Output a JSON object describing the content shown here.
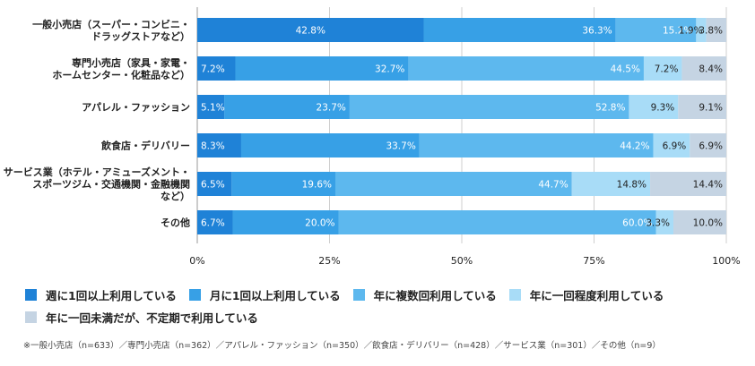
{
  "chart_data": {
    "type": "bar",
    "orientation": "horizontal",
    "stacked": true,
    "categories": [
      [
        "一般小売店（スーパー・コンビニ・",
        "ドラッグストアなど）"
      ],
      [
        "専門小売店（家具・家電・",
        "ホームセンター・化粧品など）"
      ],
      [
        "アパレル・ファッション"
      ],
      [
        "飲食店・デリバリー"
      ],
      [
        "サービス業（ホテル・アミューズメント・",
        "スポーツジム・交通機関・金融機関",
        "など）"
      ],
      [
        "その他"
      ]
    ],
    "series": [
      {
        "name": "週に1回以上利用している",
        "color": "#1f82d7",
        "values": [
          42.8,
          7.2,
          5.1,
          8.3,
          6.5,
          6.7
        ],
        "labels": [
          "42.8%",
          "7.2%",
          "5.1%",
          "8.3%",
          "6.5%",
          "6.7%"
        ]
      },
      {
        "name": "月に1回以上利用している",
        "color": "#37a0e6",
        "values": [
          36.3,
          32.7,
          23.7,
          33.7,
          19.6,
          20.0
        ],
        "labels": [
          "36.3%",
          "32.7%",
          "23.7%",
          "33.7%",
          "19.6%",
          "20.0%"
        ]
      },
      {
        "name": "年に複数回利用している",
        "color": "#5db8ee",
        "values": [
          15.2,
          44.5,
          52.8,
          44.2,
          44.7,
          60.0
        ],
        "labels": [
          "15.2%",
          "44.5%",
          "52.8%",
          "44.2%",
          "44.7%",
          "60.0%"
        ]
      },
      {
        "name": "年に一回程度利用している",
        "color": "#a8dcf7",
        "values": [
          1.9,
          7.2,
          9.3,
          6.9,
          14.8,
          3.3
        ],
        "labels": [
          "1.9%",
          "7.2%",
          "9.3%",
          "6.9%",
          "14.8%",
          "3.3%"
        ]
      },
      {
        "name": "年に一回未満だが、不定期で利用している",
        "color": "#c5d4e3",
        "values": [
          3.8,
          8.4,
          9.1,
          6.9,
          14.4,
          10.0
        ],
        "labels": [
          "3.8%",
          "8.4%",
          "9.1%",
          "6.9%",
          "14.4%",
          "10.0%"
        ]
      }
    ],
    "xlim": [
      0,
      100
    ],
    "xticks": [
      "0%",
      "25%",
      "50%",
      "75%",
      "100%"
    ],
    "grid": true,
    "legend_position": "bottom"
  },
  "note": "※一般小売店（n=633）／専門小売店（n=362）／アパレル・ファッション（n=350）／飲食店・デリバリー（n=428）／サービス業（n=301）／その他（n=9）"
}
